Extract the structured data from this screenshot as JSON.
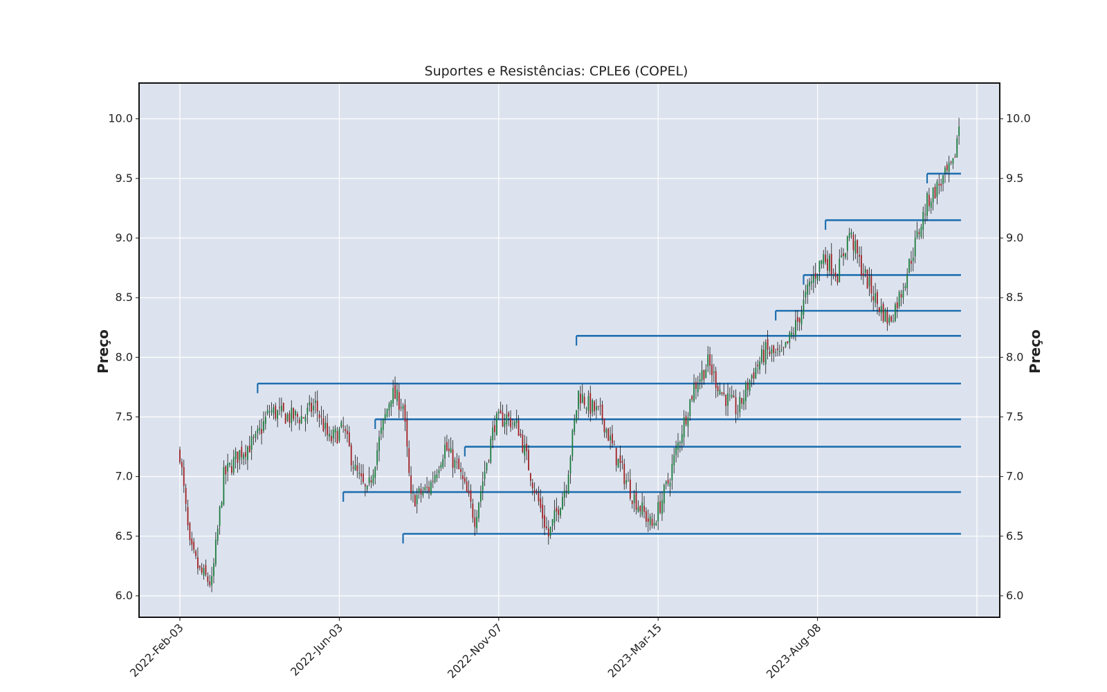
{
  "chart_data": {
    "type": "candlestick",
    "title": "Suportes e Resistências: CPLE6 (COPEL)",
    "ylabel_left": "Preço",
    "ylabel_right": "Preço",
    "ylim": [
      5.82,
      10.3
    ],
    "yticks": [
      6.0,
      6.5,
      7.0,
      7.5,
      8.0,
      8.5,
      9.0,
      9.5,
      10.0
    ],
    "ytick_labels": [
      "6.0",
      "6.5",
      "7.0",
      "7.5",
      "8.0",
      "8.5",
      "9.0",
      "9.5",
      "10.0"
    ],
    "x_tick_labels": [
      "2022-Feb-03",
      "2022-Jun-03",
      "2022-Nov-07",
      "2023-Mar-15",
      "2023-Aug-08"
    ],
    "x_tick_index": [
      0,
      80,
      160,
      240,
      320
    ],
    "n_bars": 392,
    "grid": true,
    "colors": {
      "background": "#dde3ee",
      "grid": "#ffffff",
      "up": "#1a7a3c",
      "down": "#9e1f22",
      "wick": "#111111",
      "level_line": "#1f6fb0"
    },
    "price_anchors": [
      [
        0,
        7.2
      ],
      [
        5,
        6.4
      ],
      [
        10,
        6.2
      ],
      [
        16,
        6.1
      ],
      [
        22,
        7.0
      ],
      [
        30,
        7.2
      ],
      [
        38,
        7.3
      ],
      [
        45,
        7.55
      ],
      [
        55,
        7.5
      ],
      [
        62,
        7.5
      ],
      [
        68,
        7.6
      ],
      [
        75,
        7.3
      ],
      [
        82,
        7.4
      ],
      [
        88,
        7.05
      ],
      [
        94,
        6.85
      ],
      [
        100,
        7.3
      ],
      [
        106,
        7.7
      ],
      [
        112,
        7.6
      ],
      [
        116,
        6.8
      ],
      [
        125,
        6.9
      ],
      [
        133,
        7.25
      ],
      [
        140,
        7.05
      ],
      [
        148,
        6.65
      ],
      [
        158,
        7.45
      ],
      [
        164,
        7.5
      ],
      [
        170,
        7.4
      ],
      [
        178,
        6.9
      ],
      [
        185,
        6.5
      ],
      [
        194,
        6.95
      ],
      [
        200,
        7.7
      ],
      [
        205,
        7.6
      ],
      [
        212,
        7.5
      ],
      [
        218,
        7.2
      ],
      [
        227,
        6.85
      ],
      [
        237,
        6.58
      ],
      [
        245,
        6.95
      ],
      [
        252,
        7.4
      ],
      [
        258,
        7.75
      ],
      [
        265,
        7.95
      ],
      [
        272,
        7.7
      ],
      [
        280,
        7.55
      ],
      [
        287,
        7.85
      ],
      [
        294,
        8.05
      ],
      [
        302,
        8.0
      ],
      [
        310,
        8.3
      ],
      [
        316,
        8.6
      ],
      [
        323,
        8.85
      ],
      [
        330,
        8.7
      ],
      [
        336,
        9.05
      ],
      [
        342,
        8.75
      ],
      [
        350,
        8.45
      ],
      [
        356,
        8.3
      ],
      [
        362,
        8.55
      ],
      [
        369,
        8.95
      ],
      [
        375,
        9.3
      ],
      [
        381,
        9.45
      ],
      [
        388,
        9.6
      ],
      [
        391,
        9.95
      ]
    ],
    "levels": [
      {
        "price": 9.54,
        "start_index": 375
      },
      {
        "price": 9.15,
        "start_index": 324
      },
      {
        "price": 8.69,
        "start_index": 313
      },
      {
        "price": 8.39,
        "start_index": 299
      },
      {
        "price": 8.18,
        "start_index": 199
      },
      {
        "price": 7.78,
        "start_index": 39
      },
      {
        "price": 7.48,
        "start_index": 98
      },
      {
        "price": 7.25,
        "start_index": 143
      },
      {
        "price": 6.87,
        "start_index": 82
      },
      {
        "price": 6.52,
        "start_index": 112
      }
    ]
  }
}
